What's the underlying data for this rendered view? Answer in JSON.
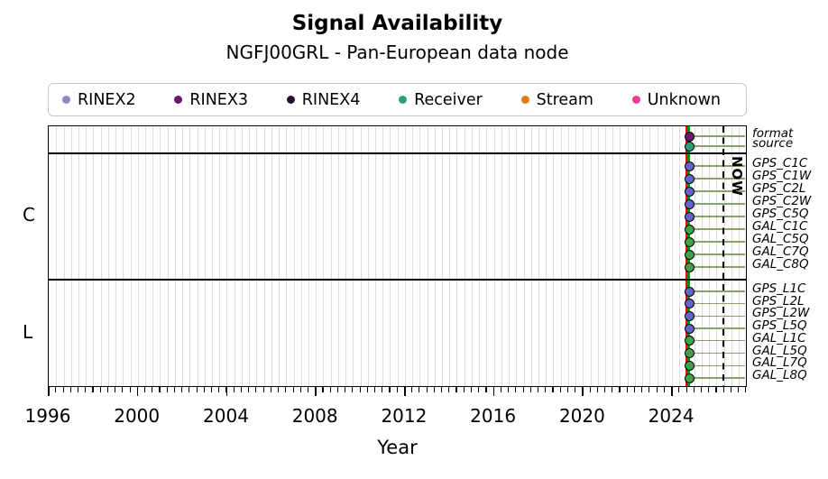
{
  "title": "Signal Availability",
  "subtitle": "NGFJ00GRL - Pan-European data node",
  "legend": [
    {
      "label": "RINEX2",
      "color": "#8c87c6"
    },
    {
      "label": "RINEX3",
      "color": "#6d1670"
    },
    {
      "label": "RINEX4",
      "color": "#27102e"
    },
    {
      "label": "Receiver",
      "color": "#2aa17c"
    },
    {
      "label": "Stream",
      "color": "#e07b17"
    },
    {
      "label": "Unknown",
      "color": "#ea3b96"
    }
  ],
  "axis": {
    "xlabel": "Year",
    "now_label": "NOW"
  },
  "chart_data": {
    "type": "scatter",
    "title": "Signal Availability",
    "subtitle": "NGFJ00GRL - Pan-European data node",
    "xlabel": "Year",
    "xlim": [
      1996,
      2027.4
    ],
    "x_major_ticks": [
      1996,
      2000,
      2004,
      2008,
      2012,
      2016,
      2020,
      2024
    ],
    "minor_tick_interval_years": 0.3333,
    "grid": "minor-vertical-gray",
    "legend_position": "top",
    "now_line_year": 2026.3,
    "observation_year": 2024.75,
    "observation_line_colors": {
      "primary": "#0a8f0a",
      "secondary": "#dd1111"
    },
    "availability_line_color": "#8ba36b",
    "groups": [
      {
        "label": "",
        "rows": [
          {
            "name": "format",
            "dot_color": "#6d1670",
            "dot_category": "RINEX3",
            "x": 2024.75
          },
          {
            "name": "source",
            "dot_color": "#2aa17c",
            "dot_category": "Receiver",
            "x": 2024.75
          }
        ]
      },
      {
        "label": "C",
        "rows": [
          {
            "name": "GPS_C1C",
            "dot_color": "#6663c8",
            "x": 2024.75
          },
          {
            "name": "GPS_C1W",
            "dot_color": "#6663c8",
            "x": 2024.75
          },
          {
            "name": "GPS_C2L",
            "dot_color": "#6663c8",
            "x": 2024.75
          },
          {
            "name": "GPS_C2W",
            "dot_color": "#6663c8",
            "x": 2024.75
          },
          {
            "name": "GPS_C5Q",
            "dot_color": "#6663c8",
            "x": 2024.75
          },
          {
            "name": "GAL_C1C",
            "dot_color": "#3fa24b",
            "x": 2024.75
          },
          {
            "name": "GAL_C5Q",
            "dot_color": "#3fa24b",
            "x": 2024.75
          },
          {
            "name": "GAL_C7Q",
            "dot_color": "#3fa24b",
            "x": 2024.75
          },
          {
            "name": "GAL_C8Q",
            "dot_color": "#3fa24b",
            "x": 2024.75
          }
        ]
      },
      {
        "label": "L",
        "rows": [
          {
            "name": "GPS_L1C",
            "dot_color": "#6663c8",
            "x": 2024.75
          },
          {
            "name": "GPS_L2L",
            "dot_color": "#6663c8",
            "x": 2024.75
          },
          {
            "name": "GPS_L2W",
            "dot_color": "#6663c8",
            "x": 2024.75
          },
          {
            "name": "GPS_L5Q",
            "dot_color": "#6663c8",
            "x": 2024.75
          },
          {
            "name": "GAL_L1C",
            "dot_color": "#3fa24b",
            "x": 2024.75
          },
          {
            "name": "GAL_L5Q",
            "dot_color": "#3fa24b",
            "x": 2024.75
          },
          {
            "name": "GAL_L7Q",
            "dot_color": "#3fa24b",
            "x": 2024.75
          },
          {
            "name": "GAL_L8Q",
            "dot_color": "#3fa24b",
            "x": 2024.75
          }
        ]
      }
    ]
  }
}
